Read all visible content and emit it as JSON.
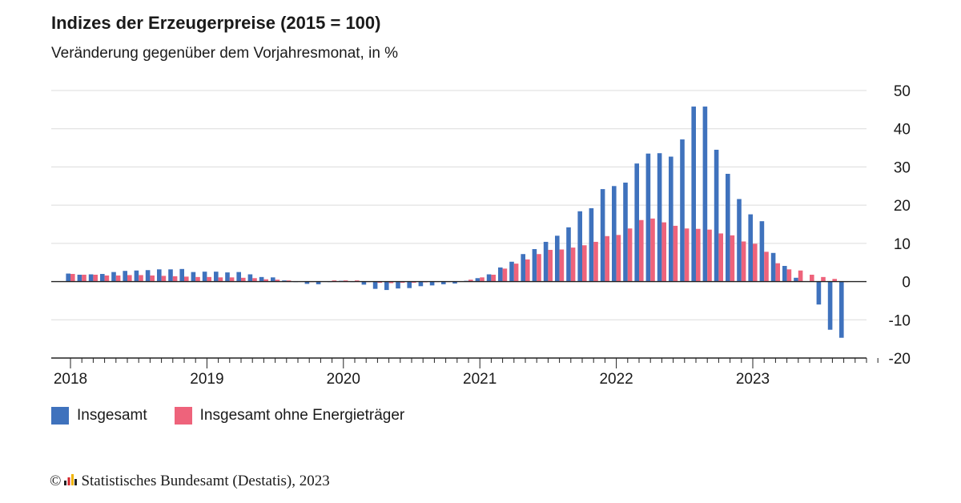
{
  "chart_data": {
    "type": "bar",
    "title": "Indizes der Erzeugerpreise (2015 = 100)",
    "subtitle": "Veränderung gegenüber dem Vorjahresmonat, in %",
    "ylim": [
      -20,
      50
    ],
    "yticks": [
      50,
      40,
      30,
      20,
      10,
      0,
      -10,
      -20
    ],
    "year_labels": [
      "2018",
      "2019",
      "2020",
      "2021",
      "2022",
      "2023"
    ],
    "grid": true,
    "legend_position": "bottom-left",
    "series": [
      {
        "name": "Insgesamt",
        "color": "#3f72bd",
        "values": [
          2.1,
          1.8,
          1.9,
          2.0,
          2.5,
          2.8,
          2.9,
          3.0,
          3.2,
          3.2,
          3.3,
          2.5,
          2.6,
          2.6,
          2.4,
          2.5,
          1.9,
          1.2,
          1.1,
          0.3,
          -0.1,
          -0.6,
          -0.7,
          -0.1,
          0.2,
          -0.1,
          -0.8,
          -1.9,
          -2.2,
          -1.8,
          -1.7,
          -1.2,
          -1.0,
          -0.7,
          -0.5,
          0.2,
          0.9,
          1.9,
          3.7,
          5.2,
          7.2,
          8.5,
          10.4,
          12.0,
          14.2,
          18.4,
          19.2,
          24.2,
          25.0,
          25.9,
          30.9,
          33.5,
          33.6,
          32.7,
          37.2,
          45.8,
          45.8,
          34.5,
          28.2,
          21.6,
          17.6,
          15.8,
          7.5,
          4.1,
          1.0,
          0.1,
          -6.0,
          -12.6,
          -14.7
        ]
      },
      {
        "name": "Insgesamt ohne Energieträger",
        "color": "#ee637b",
        "values": [
          2.0,
          1.8,
          1.8,
          1.6,
          1.6,
          1.7,
          1.7,
          1.6,
          1.5,
          1.4,
          1.3,
          1.2,
          1.2,
          1.1,
          1.1,
          1.0,
          0.9,
          0.6,
          0.5,
          0.3,
          0.1,
          0.0,
          0.1,
          0.3,
          0.3,
          0.3,
          0.0,
          -0.3,
          -0.4,
          -0.3,
          -0.3,
          -0.2,
          -0.1,
          0.0,
          0.1,
          0.5,
          1.1,
          1.8,
          3.4,
          4.7,
          5.8,
          7.2,
          8.3,
          8.4,
          8.9,
          9.5,
          10.4,
          11.9,
          12.2,
          13.9,
          16.1,
          16.5,
          15.5,
          14.6,
          13.9,
          13.8,
          13.6,
          12.6,
          12.1,
          10.5,
          9.9,
          7.8,
          4.8,
          3.2,
          2.9,
          1.8,
          1.2,
          0.7,
          0.0
        ]
      }
    ]
  },
  "legend": {
    "series1_label": "Insgesamt",
    "series2_label": "Insgesamt ohne Energieträger"
  },
  "footer": {
    "copyright_symbol": "©",
    "source_text": "Statistisches Bundesamt (Destatis), 2023"
  }
}
